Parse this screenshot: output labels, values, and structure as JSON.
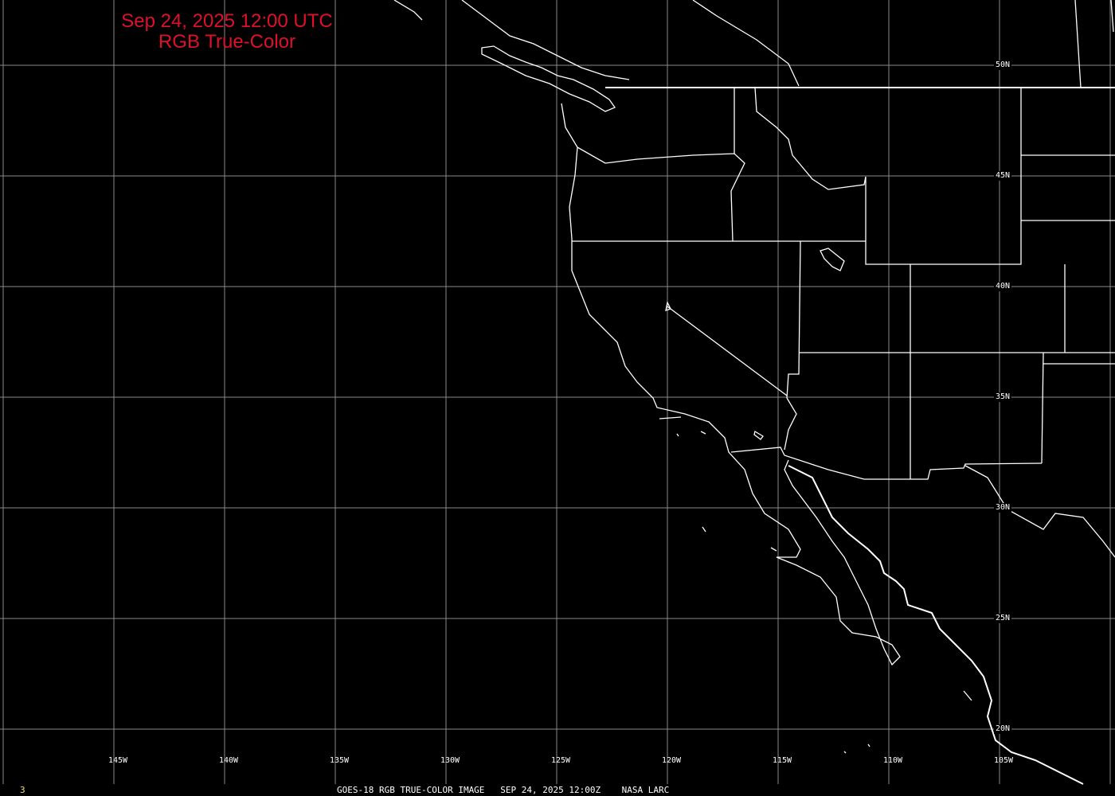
{
  "title": {
    "line1": "Sep 24, 2025 12:00 UTC",
    "line2": "RGB True-Color"
  },
  "latitude_labels": [
    "50N",
    "45N",
    "40N",
    "35N",
    "30N",
    "25N",
    "20N"
  ],
  "longitude_labels": [
    "145W",
    "140W",
    "135W",
    "130W",
    "125W",
    "120W",
    "115W",
    "110W",
    "105W"
  ],
  "footer": "GOES-18 RGB TRUE-COLOR IMAGE   SEP 24, 2025 12:00Z    NASA LARC",
  "frame_number": "3",
  "colors": {
    "title": "#e0102a",
    "grid": "#8a8a8a",
    "coastline": "#ffffff",
    "background": "#000000",
    "frame_number": "#e8e060"
  }
}
